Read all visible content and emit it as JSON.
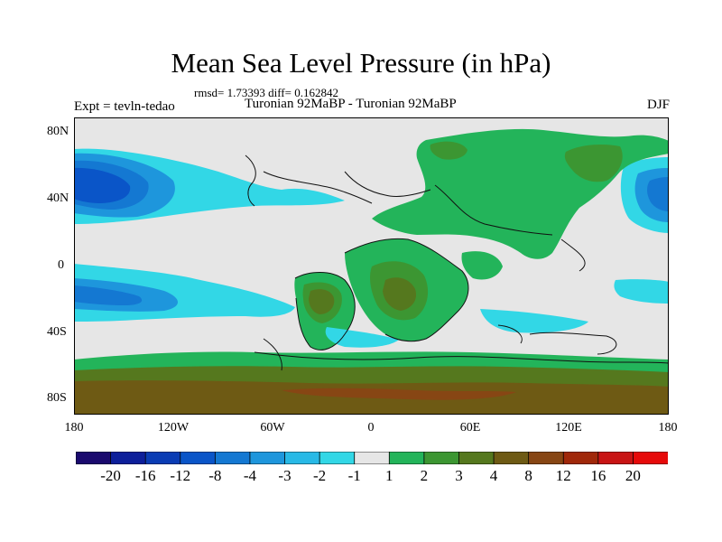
{
  "title": "Mean Sea Level Pressure (in hPa)",
  "stats": "rmsd= 1.73393 diff= 0.162842",
  "expt": "Expt = tevln-tedao",
  "comparison": "Turonian  92MaBP - Turonian  92MaBP",
  "season": "DJF",
  "lat_ticks": [
    "80N",
    "40N",
    "0",
    "40S",
    "80S"
  ],
  "lon_ticks": [
    "180",
    "120W",
    "60W",
    "0",
    "60E",
    "120E",
    "180"
  ],
  "legend": {
    "labels": [
      "-20",
      "-16",
      "-12",
      "-8",
      "-4",
      "-3",
      "-2",
      "-1",
      "1",
      "2",
      "3",
      "4",
      "8",
      "12",
      "16",
      "20"
    ],
    "colors": [
      "#1a0a6e",
      "#0d1f9a",
      "#0a3cb4",
      "#0a55c8",
      "#1478d2",
      "#1e96dc",
      "#28b9e6",
      "#32d7e6",
      "#e6e6e6",
      "#23b45a",
      "#3c9632",
      "#55781e",
      "#6e5a14",
      "#874614",
      "#a0280a",
      "#c81414",
      "#e60a0a"
    ]
  },
  "colors": {
    "neutral": "#e6e6e6",
    "green_light": "#23b45a",
    "green_mid": "#3c9632",
    "olive": "#55781e",
    "brown": "#6e5a14",
    "cyan": "#32d7e6",
    "sky": "#28b9e6",
    "blue": "#1e96dc",
    "blue_deep": "#1478d2"
  }
}
